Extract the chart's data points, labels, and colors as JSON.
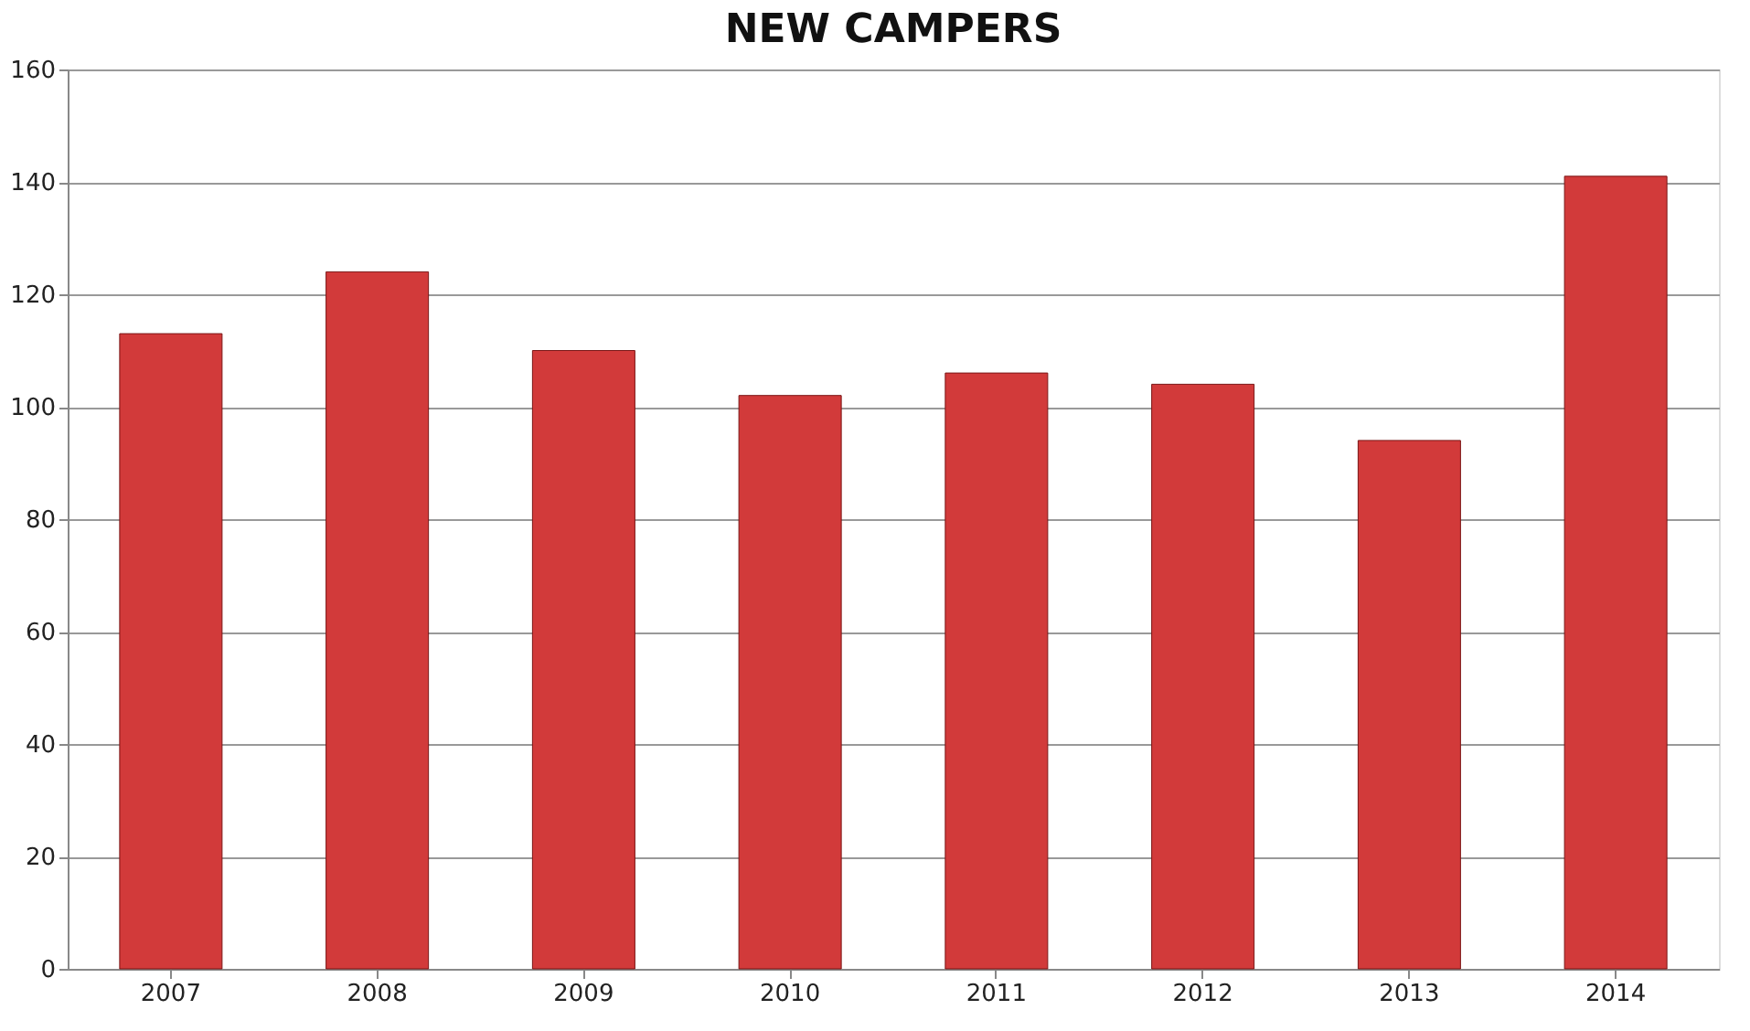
{
  "chart_data": {
    "type": "bar",
    "title": "NEW CAMPERS",
    "categories": [
      "2007",
      "2008",
      "2009",
      "2010",
      "2011",
      "2012",
      "2013",
      "2014"
    ],
    "values": [
      113,
      124,
      110,
      102,
      106,
      104,
      94,
      141
    ],
    "color": "#d23a3a",
    "ylim": [
      0,
      160
    ],
    "yticks": [
      0,
      20,
      40,
      60,
      80,
      100,
      120,
      140,
      160
    ],
    "grid": "y"
  }
}
